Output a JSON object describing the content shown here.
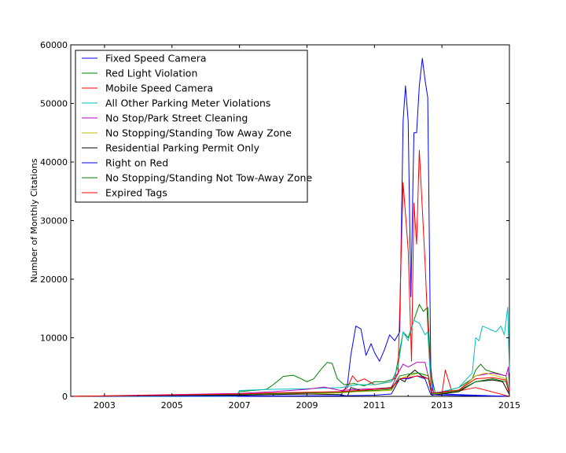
{
  "chart_data": {
    "type": "line",
    "title": "",
    "xlabel": "",
    "ylabel": "Number of Monthly Citations",
    "xlim": [
      2002,
      2015
    ],
    "ylim": [
      0,
      60000
    ],
    "x_ticks": [
      {
        "value": 2003,
        "label": "2003"
      },
      {
        "value": 2005,
        "label": "2005"
      },
      {
        "value": 2007,
        "label": "2007"
      },
      {
        "value": 2009,
        "label": "2009"
      },
      {
        "value": 2011,
        "label": "2011"
      },
      {
        "value": 2013,
        "label": "2013"
      },
      {
        "value": 2015,
        "label": "2015"
      }
    ],
    "y_ticks": [
      {
        "value": 0,
        "label": "0"
      },
      {
        "value": 10000,
        "label": "10000"
      },
      {
        "value": 20000,
        "label": "20000"
      },
      {
        "value": 30000,
        "label": "30000"
      },
      {
        "value": 40000,
        "label": "40000"
      },
      {
        "value": 50000,
        "label": "50000"
      },
      {
        "value": 60000,
        "label": "60000"
      }
    ],
    "grid": false,
    "legend_position": "top-left",
    "series": [
      {
        "name": "Fixed Speed Camera",
        "color": "#0000ff",
        "points": [
          [
            2002.0,
            0
          ],
          [
            2007.0,
            0
          ],
          [
            2010.0,
            100
          ],
          [
            2010.2,
            2000
          ],
          [
            2010.3,
            7000
          ],
          [
            2010.45,
            12000
          ],
          [
            2010.6,
            11500
          ],
          [
            2010.75,
            7000
          ],
          [
            2010.9,
            9000
          ],
          [
            2011.0,
            7500
          ],
          [
            2011.15,
            6000
          ],
          [
            2011.3,
            8000
          ],
          [
            2011.45,
            10500
          ],
          [
            2011.6,
            9500
          ],
          [
            2011.75,
            11000
          ],
          [
            2011.85,
            47000
          ],
          [
            2011.92,
            53000
          ],
          [
            2012.0,
            47000
          ],
          [
            2012.08,
            17000
          ],
          [
            2012.17,
            45000
          ],
          [
            2012.25,
            45000
          ],
          [
            2012.33,
            53000
          ],
          [
            2012.42,
            57700
          ],
          [
            2012.5,
            54000
          ],
          [
            2012.58,
            51000
          ],
          [
            2012.67,
            5000
          ],
          [
            2012.75,
            500
          ],
          [
            2013.0,
            400
          ],
          [
            2015.0,
            0
          ]
        ]
      },
      {
        "name": "Red Light Violation",
        "color": "#008000",
        "points": [
          [
            2002.0,
            0
          ],
          [
            2006.9,
            100
          ],
          [
            2007.0,
            800
          ],
          [
            2007.4,
            1000
          ],
          [
            2007.8,
            1200
          ],
          [
            2008.0,
            2000
          ],
          [
            2008.3,
            3400
          ],
          [
            2008.6,
            3600
          ],
          [
            2008.9,
            2800
          ],
          [
            2009.0,
            2500
          ],
          [
            2009.2,
            3000
          ],
          [
            2009.4,
            4500
          ],
          [
            2009.6,
            5800
          ],
          [
            2009.75,
            5600
          ],
          [
            2009.9,
            3000
          ],
          [
            2010.1,
            2000
          ],
          [
            2010.4,
            2200
          ],
          [
            2010.7,
            1800
          ],
          [
            2011.0,
            2500
          ],
          [
            2011.3,
            2500
          ],
          [
            2011.6,
            3000
          ],
          [
            2011.85,
            11000
          ],
          [
            2012.0,
            10000
          ],
          [
            2012.17,
            13000
          ],
          [
            2012.33,
            15700
          ],
          [
            2012.45,
            14500
          ],
          [
            2012.58,
            15200
          ],
          [
            2012.67,
            4000
          ],
          [
            2012.8,
            600
          ],
          [
            2013.0,
            700
          ],
          [
            2013.5,
            1500
          ],
          [
            2013.9,
            3000
          ],
          [
            2014.0,
            4500
          ],
          [
            2014.15,
            5500
          ],
          [
            2014.3,
            4500
          ],
          [
            2014.6,
            4000
          ],
          [
            2014.9,
            3500
          ],
          [
            2015.0,
            500
          ]
        ]
      },
      {
        "name": "Mobile Speed Camera",
        "color": "#ff0000",
        "points": [
          [
            2002.0,
            0
          ],
          [
            2007.0,
            200
          ],
          [
            2009.0,
            600
          ],
          [
            2010.0,
            800
          ],
          [
            2010.2,
            1500
          ],
          [
            2010.35,
            3500
          ],
          [
            2010.5,
            2500
          ],
          [
            2010.7,
            3000
          ],
          [
            2011.0,
            2000
          ],
          [
            2011.5,
            2500
          ],
          [
            2011.7,
            4000
          ],
          [
            2011.85,
            36500
          ],
          [
            2012.0,
            25000
          ],
          [
            2012.1,
            6000
          ],
          [
            2012.17,
            33000
          ],
          [
            2012.25,
            26000
          ],
          [
            2012.33,
            42000
          ],
          [
            2012.5,
            23000
          ],
          [
            2012.58,
            12000
          ],
          [
            2012.7,
            500
          ],
          [
            2013.0,
            400
          ],
          [
            2013.1,
            4500
          ],
          [
            2013.3,
            700
          ],
          [
            2014.0,
            1500
          ],
          [
            2015.0,
            0
          ]
        ]
      },
      {
        "name": "All Other Parking Meter Violations",
        "color": "#00bfbf",
        "points": [
          [
            2002.0,
            0
          ],
          [
            2006.9,
            0
          ],
          [
            2007.0,
            1000
          ],
          [
            2008.0,
            1200
          ],
          [
            2009.0,
            1300
          ],
          [
            2010.0,
            1500
          ],
          [
            2010.5,
            2000
          ],
          [
            2011.0,
            2000
          ],
          [
            2011.5,
            2500
          ],
          [
            2011.7,
            5000
          ],
          [
            2011.85,
            11000
          ],
          [
            2012.0,
            9500
          ],
          [
            2012.17,
            13000
          ],
          [
            2012.33,
            12500
          ],
          [
            2012.5,
            10500
          ],
          [
            2012.58,
            11000
          ],
          [
            2012.67,
            2000
          ],
          [
            2012.75,
            600
          ],
          [
            2013.0,
            800
          ],
          [
            2013.5,
            1500
          ],
          [
            2013.9,
            4000
          ],
          [
            2014.0,
            10000
          ],
          [
            2014.1,
            9500
          ],
          [
            2014.2,
            12000
          ],
          [
            2014.4,
            11500
          ],
          [
            2014.6,
            11000
          ],
          [
            2014.75,
            12000
          ],
          [
            2014.85,
            10500
          ],
          [
            2014.95,
            15200
          ],
          [
            2015.0,
            4000
          ]
        ]
      },
      {
        "name": "No Stop/Park Street Cleaning",
        "color": "#bf00bf",
        "points": [
          [
            2002.0,
            0
          ],
          [
            2007.0,
            500
          ],
          [
            2008.0,
            800
          ],
          [
            2009.0,
            1200
          ],
          [
            2009.5,
            1600
          ],
          [
            2010.0,
            1000
          ],
          [
            2010.5,
            1200
          ],
          [
            2011.0,
            1300
          ],
          [
            2011.5,
            1500
          ],
          [
            2011.75,
            4500
          ],
          [
            2011.85,
            5500
          ],
          [
            2012.0,
            5000
          ],
          [
            2012.25,
            5800
          ],
          [
            2012.5,
            5800
          ],
          [
            2012.67,
            1500
          ],
          [
            2012.8,
            300
          ],
          [
            2013.0,
            800
          ],
          [
            2013.5,
            1000
          ],
          [
            2014.0,
            3500
          ],
          [
            2014.5,
            4000
          ],
          [
            2014.9,
            3500
          ],
          [
            2014.97,
            5000
          ],
          [
            2015.0,
            1000
          ]
        ]
      },
      {
        "name": "No Stopping/Standing Tow Away Zone",
        "color": "#bfbf00",
        "points": [
          [
            2002.0,
            0
          ],
          [
            2007.0,
            300
          ],
          [
            2008.0,
            400
          ],
          [
            2009.0,
            400
          ],
          [
            2010.0,
            600
          ],
          [
            2010.5,
            800
          ],
          [
            2011.0,
            900
          ],
          [
            2011.5,
            1000
          ],
          [
            2011.75,
            3000
          ],
          [
            2012.0,
            3500
          ],
          [
            2012.3,
            4000
          ],
          [
            2012.6,
            3500
          ],
          [
            2012.7,
            400
          ],
          [
            2013.0,
            500
          ],
          [
            2013.5,
            900
          ],
          [
            2014.0,
            3500
          ],
          [
            2014.3,
            4000
          ],
          [
            2014.6,
            3500
          ],
          [
            2014.9,
            3000
          ],
          [
            2015.0,
            400
          ]
        ]
      },
      {
        "name": "Residential Parking Permit Only",
        "color": "#000000",
        "points": [
          [
            2002.0,
            0
          ],
          [
            2007.0,
            200
          ],
          [
            2008.0,
            300
          ],
          [
            2009.0,
            400
          ],
          [
            2010.0,
            300
          ],
          [
            2010.2,
            0
          ],
          [
            2010.3,
            1500
          ],
          [
            2010.6,
            1000
          ],
          [
            2011.0,
            1200
          ],
          [
            2011.5,
            1500
          ],
          [
            2011.75,
            3000
          ],
          [
            2011.9,
            2500
          ],
          [
            2012.0,
            3500
          ],
          [
            2012.2,
            4500
          ],
          [
            2012.4,
            3500
          ],
          [
            2012.6,
            3000
          ],
          [
            2012.7,
            200
          ],
          [
            2013.0,
            400
          ],
          [
            2013.5,
            800
          ],
          [
            2014.0,
            2500
          ],
          [
            2014.5,
            2800
          ],
          [
            2014.8,
            2500
          ],
          [
            2015.0,
            300
          ]
        ]
      },
      {
        "name": "Right on Red",
        "color": "#0000ff",
        "points": [
          [
            2002.0,
            0
          ],
          [
            2010.0,
            100
          ],
          [
            2011.0,
            200
          ],
          [
            2011.5,
            400
          ],
          [
            2011.75,
            3000
          ],
          [
            2012.0,
            3000
          ],
          [
            2012.25,
            3500
          ],
          [
            2012.5,
            3000
          ],
          [
            2012.67,
            300
          ],
          [
            2013.0,
            200
          ],
          [
            2015.0,
            0
          ]
        ]
      },
      {
        "name": "No Stopping/Standing Not Tow-Away Zone",
        "color": "#008000",
        "points": [
          [
            2002.0,
            0
          ],
          [
            2007.0,
            300
          ],
          [
            2008.0,
            500
          ],
          [
            2009.0,
            600
          ],
          [
            2010.0,
            700
          ],
          [
            2010.5,
            900
          ],
          [
            2011.0,
            1000
          ],
          [
            2011.5,
            1200
          ],
          [
            2011.75,
            3500
          ],
          [
            2012.0,
            3800
          ],
          [
            2012.3,
            4000
          ],
          [
            2012.6,
            3500
          ],
          [
            2012.7,
            500
          ],
          [
            2013.0,
            600
          ],
          [
            2013.5,
            1000
          ],
          [
            2014.0,
            2500
          ],
          [
            2014.5,
            3000
          ],
          [
            2014.9,
            2500
          ],
          [
            2015.0,
            400
          ]
        ]
      },
      {
        "name": "Expired Tags",
        "color": "#ff0000",
        "points": [
          [
            2002.0,
            0
          ],
          [
            2007.0,
            400
          ],
          [
            2008.0,
            600
          ],
          [
            2009.0,
            700
          ],
          [
            2010.0,
            800
          ],
          [
            2010.5,
            1000
          ],
          [
            2011.0,
            1200
          ],
          [
            2011.5,
            1400
          ],
          [
            2011.75,
            3000
          ],
          [
            2012.0,
            3200
          ],
          [
            2012.3,
            3500
          ],
          [
            2012.6,
            3000
          ],
          [
            2012.7,
            600
          ],
          [
            2013.0,
            700
          ],
          [
            2013.5,
            1100
          ],
          [
            2014.0,
            3000
          ],
          [
            2014.5,
            3200
          ],
          [
            2014.9,
            2800
          ],
          [
            2015.0,
            400
          ]
        ]
      }
    ]
  }
}
